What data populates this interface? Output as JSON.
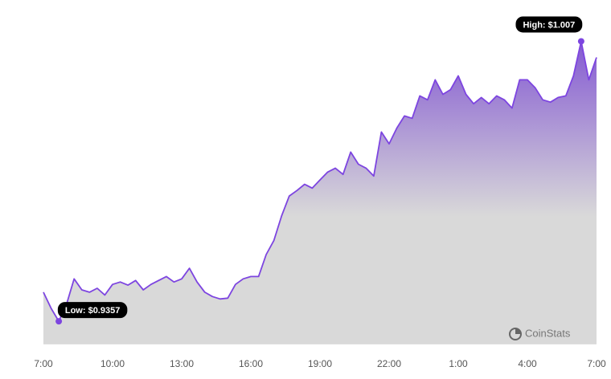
{
  "chart_data": {
    "type": "area",
    "categories": [
      "7:00",
      null,
      null,
      null,
      null,
      null,
      null,
      null,
      null,
      "10:00",
      null,
      null,
      null,
      null,
      null,
      null,
      null,
      null,
      "13:00",
      null,
      null,
      null,
      null,
      null,
      null,
      null,
      null,
      "16:00",
      null,
      null,
      null,
      null,
      null,
      null,
      null,
      null,
      "19:00",
      null,
      null,
      null,
      null,
      null,
      null,
      null,
      null,
      "22:00",
      null,
      null,
      null,
      null,
      null,
      null,
      null,
      null,
      "1:00",
      null,
      null,
      null,
      null,
      null,
      null,
      null,
      null,
      "4:00",
      null,
      null,
      null,
      null,
      null,
      null,
      null,
      null,
      "7:00"
    ],
    "values": [
      0.9431,
      0.939,
      0.9357,
      0.94,
      0.9465,
      0.9437,
      0.9431,
      0.9441,
      0.9424,
      0.9451,
      0.9457,
      0.9449,
      0.9461,
      0.9437,
      0.9451,
      0.9461,
      0.9471,
      0.9457,
      0.9465,
      0.9492,
      0.9457,
      0.9431,
      0.942,
      0.9414,
      0.9416,
      0.9451,
      0.9465,
      0.9471,
      0.9471,
      0.9527,
      0.9563,
      0.9625,
      0.9676,
      0.969,
      0.9706,
      0.9696,
      0.9717,
      0.9737,
      0.9747,
      0.9731,
      0.9788,
      0.9757,
      0.9747,
      0.9727,
      0.9839,
      0.9809,
      0.9849,
      0.988,
      0.9874,
      0.9931,
      0.9921,
      0.9972,
      0.9935,
      0.9947,
      0.9982,
      0.9935,
      0.9911,
      0.9927,
      0.9911,
      0.9931,
      0.9921,
      0.99,
      0.9972,
      0.9972,
      0.9952,
      0.9921,
      0.9915,
      0.9927,
      0.9931,
      0.9982,
      1.007,
      0.9972,
      1.0029
    ],
    "value_labels": [
      null,
      null,
      "Low: $0.9357",
      null,
      null,
      null,
      null,
      null,
      null,
      null,
      null,
      null,
      null,
      null,
      null,
      null,
      null,
      null,
      null,
      null,
      null,
      null,
      null,
      null,
      null,
      null,
      null,
      null,
      null,
      null,
      null,
      null,
      null,
      null,
      null,
      null,
      null,
      null,
      null,
      null,
      null,
      null,
      null,
      null,
      null,
      null,
      null,
      null,
      null,
      null,
      null,
      null,
      null,
      null,
      null,
      null,
      null,
      null,
      null,
      null,
      null,
      null,
      null,
      null,
      null,
      null,
      null,
      null,
      null,
      null,
      "High: $1.007",
      null,
      null
    ],
    "ylim": [
      0.93,
      1.012
    ],
    "color": "#7d45e0",
    "fill_top": "#8459d2",
    "fill_bottom": "#d9d9d9",
    "watermark": "CoinStats"
  }
}
